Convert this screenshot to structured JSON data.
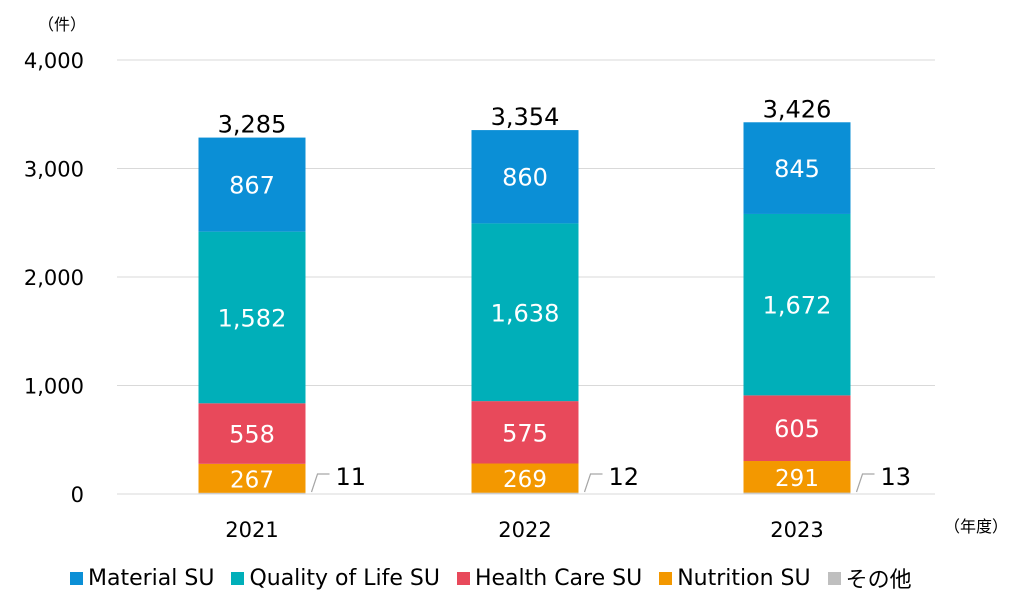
{
  "chart_data": {
    "type": "bar",
    "stacked": true,
    "y_unit_label": "（件）",
    "x_unit_label": "（年度）",
    "categories": [
      "2021",
      "2022",
      "2023"
    ],
    "ylim": [
      0,
      4000
    ],
    "yticks": [
      0,
      1000,
      2000,
      3000,
      4000
    ],
    "ytick_labels": [
      "0",
      "1,000",
      "2,000",
      "3,000",
      "4,000"
    ],
    "grid": true,
    "legend_position": "bottom",
    "series": [
      {
        "name": "その他",
        "color": "#BFBFBF",
        "values": [
          11,
          12,
          13
        ],
        "labels": [
          "11",
          "12",
          "13"
        ],
        "label_outside": true
      },
      {
        "name": "Nutrition SU",
        "color": "#F39800",
        "values": [
          267,
          269,
          291
        ],
        "labels": [
          "267",
          "269",
          "291"
        ]
      },
      {
        "name": "Health Care SU",
        "color": "#E8495B",
        "values": [
          558,
          575,
          605
        ],
        "labels": [
          "558",
          "575",
          "605"
        ]
      },
      {
        "name": "Quality of Life SU",
        "color": "#00AFB9",
        "values": [
          1582,
          1638,
          1672
        ],
        "labels": [
          "1,582",
          "1,638",
          "1,672"
        ]
      },
      {
        "name": "Material SU",
        "color": "#0B8FD6",
        "values": [
          867,
          860,
          845
        ],
        "labels": [
          "867",
          "860",
          "845"
        ]
      }
    ],
    "totals": [
      3285,
      3354,
      3426
    ],
    "total_labels": [
      "3,285",
      "3,354",
      "3,426"
    ],
    "legend_order": [
      "Material SU",
      "Quality of Life SU",
      "Health Care SU",
      "Nutrition SU",
      "その他"
    ]
  }
}
